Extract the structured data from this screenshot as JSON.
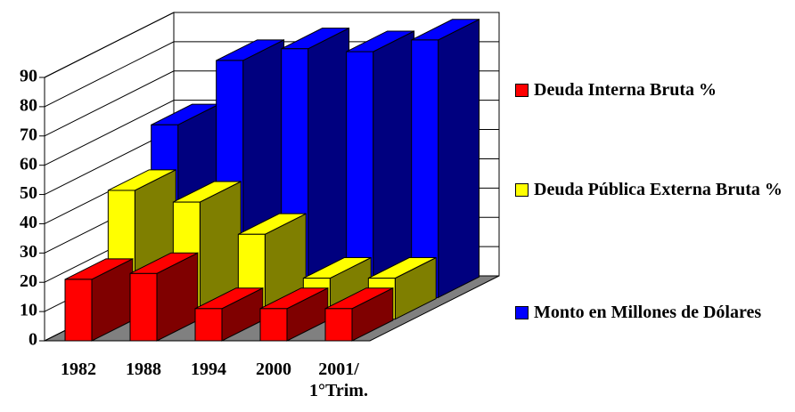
{
  "chart_data": {
    "type": "bar3d",
    "categories": [
      "1982",
      "1988",
      "1994",
      "2000",
      "2001/ 1°Trim."
    ],
    "series": [
      {
        "name": "Deuda Interna Bruta %",
        "color": "#ff0000",
        "values": [
          21,
          23,
          11,
          11,
          11
        ]
      },
      {
        "name": "Deuda Pública Externa Bruta %",
        "color": "#ffff00",
        "values": [
          44,
          40,
          29,
          14,
          14
        ]
      },
      {
        "name": "Monto en Millones de Dólares",
        "color": "#0000ff",
        "values": [
          59,
          81,
          85,
          84,
          88
        ]
      }
    ],
    "ylim": [
      0,
      90
    ],
    "yticks": [
      0,
      10,
      20,
      30,
      40,
      50,
      60,
      70,
      80,
      90
    ],
    "grid": true
  }
}
